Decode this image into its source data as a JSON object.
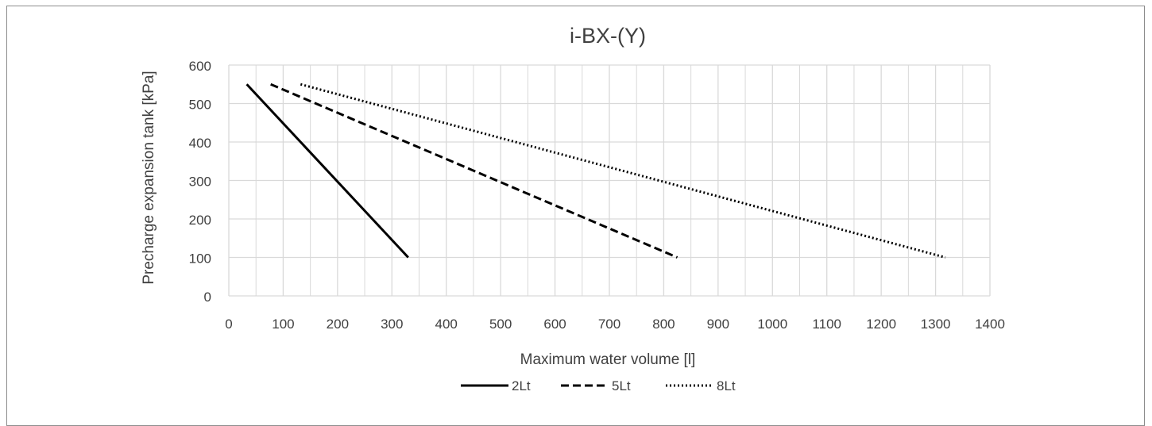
{
  "chart_data": {
    "type": "line",
    "title": "i-BX-(Y)",
    "xlabel": "Maximum water volume [l]",
    "ylabel": "Precharge expansion tank [kPa]",
    "xlim": [
      0,
      1400
    ],
    "ylim": [
      0,
      600
    ],
    "x_ticks": [
      "0",
      "100",
      "200",
      "300",
      "400",
      "500",
      "600",
      "700",
      "800",
      "900",
      "1000",
      "1100",
      "1200",
      "1300",
      "1400"
    ],
    "y_ticks": [
      "0",
      "100",
      "200",
      "300",
      "400",
      "500",
      "600"
    ],
    "grid": true,
    "legend_position": "bottom",
    "series": [
      {
        "name": "2Lt",
        "style": "solid",
        "x": [
          33,
          330
        ],
        "y": [
          550,
          100
        ]
      },
      {
        "name": "5Lt",
        "style": "dashed",
        "x": [
          77,
          825
        ],
        "y": [
          550,
          100
        ]
      },
      {
        "name": "8Lt",
        "style": "dotted",
        "x": [
          132,
          1318
        ],
        "y": [
          550,
          100
        ]
      }
    ],
    "colors": {
      "line": "#000000",
      "grid": "#d9d9d9",
      "text": "#404040",
      "border": "#8c8c8c"
    }
  }
}
